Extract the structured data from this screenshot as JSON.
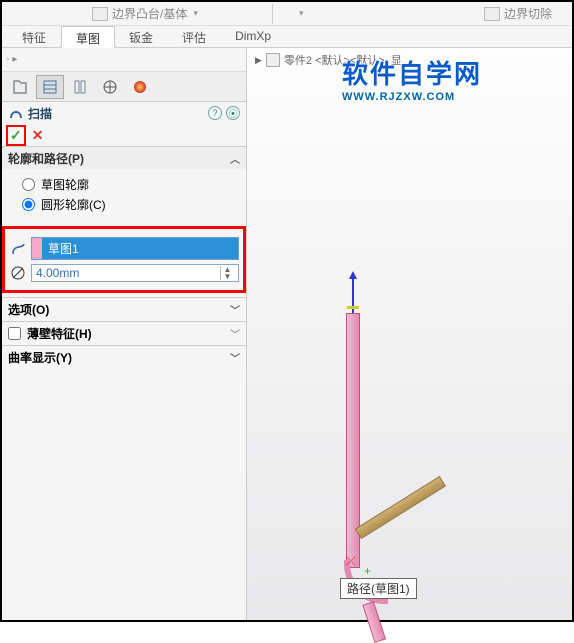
{
  "ribbon": {
    "left_label": "边界凸台/基体",
    "right_label": "边界切除"
  },
  "tabs": [
    "特征",
    "草图",
    "钣金",
    "评估",
    "DimXp"
  ],
  "active_tab_index": 1,
  "panel": {
    "feature_title": "扫描",
    "profile_section": {
      "title": "轮廓和路径(P)",
      "radio_sketch": "草图轮廓",
      "radio_circle": "圆形轮廓(C)",
      "selected_radio": "circle",
      "path_value": "草图1",
      "diameter_value": "4.00mm"
    },
    "options_title": "选项(O)",
    "thin_title": "薄壁特征(H)",
    "thin_checked": false,
    "curve_title": "曲率显示(Y)"
  },
  "canvas": {
    "doc_breadcrumb": "零件2 <默认><默认>_显...",
    "path_tooltip": "路径(草图1)"
  },
  "watermark": {
    "cn": "软件自学网",
    "url": "WWW.RJZXW.COM"
  },
  "colors": {
    "highlight_red": "#f00",
    "select_blue": "#2a90d8",
    "pink": "#e48ab0"
  }
}
